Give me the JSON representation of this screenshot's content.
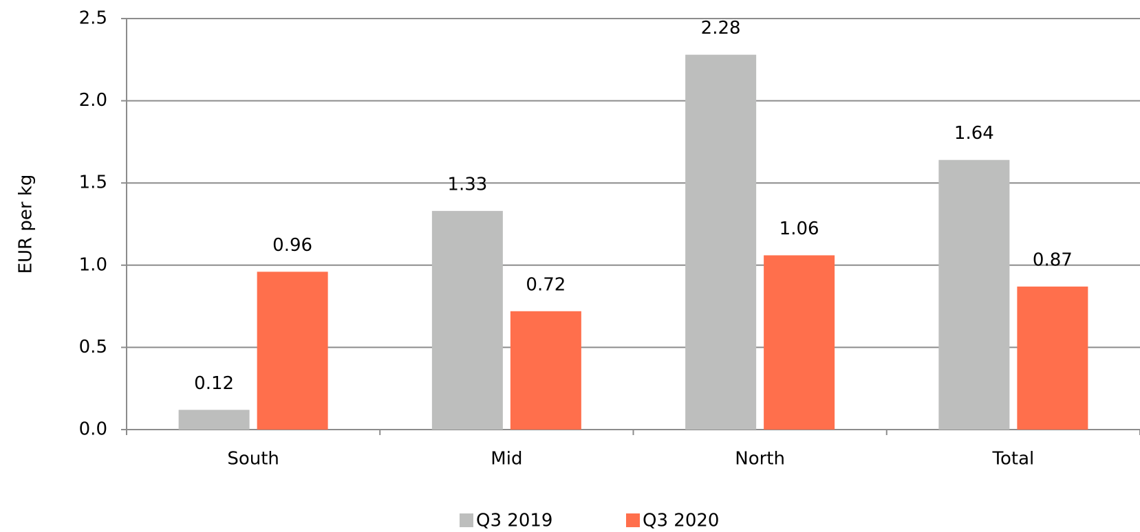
{
  "chart_data": {
    "type": "bar",
    "y_label": "EUR per kg",
    "categories": [
      "South",
      "Mid",
      "North",
      "Total"
    ],
    "series": [
      {
        "name": "Q3 2019",
        "color": "#bdbebd",
        "values": [
          0.12,
          1.33,
          2.28,
          1.64
        ]
      },
      {
        "name": "Q3 2020",
        "color": "#ff6f4c",
        "values": [
          0.96,
          0.72,
          1.06,
          0.87
        ]
      }
    ],
    "ylim": [
      0,
      2.5
    ],
    "yticks": [
      {
        "value": 0,
        "label": "0.0"
      },
      {
        "value": 0.5,
        "label": "0.5"
      },
      {
        "value": 1,
        "label": "1.0"
      },
      {
        "value": 1.5,
        "label": "1.5"
      },
      {
        "value": 2,
        "label": "2.0"
      },
      {
        "value": 2.5,
        "label": "2.5"
      }
    ],
    "grid": true
  }
}
